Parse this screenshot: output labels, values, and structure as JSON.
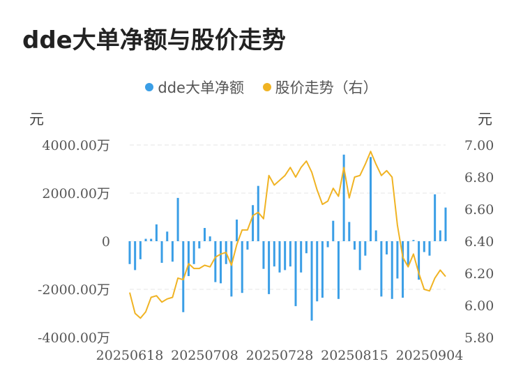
{
  "title": "dde大单净额与股价走势",
  "chart_data": {
    "type": "bar+line",
    "legend": [
      {
        "name": "dde大单净额",
        "color": "#3a9ee6"
      },
      {
        "name": "股价走势（右）",
        "color": "#f0b323"
      }
    ],
    "y_left": {
      "unit": "元",
      "ticks": [
        "4000.00万",
        "2000.00万",
        "0",
        "-2000.00万",
        "-4000.00万"
      ],
      "range": [
        -4000,
        4000
      ]
    },
    "y_right": {
      "unit": "元",
      "ticks": [
        "7.00",
        "6.80",
        "6.60",
        "6.40",
        "6.20",
        "6.00",
        "5.80"
      ],
      "range": [
        5.8,
        7.0
      ]
    },
    "x_ticks": [
      "20250618",
      "20250708",
      "20250728",
      "20250815",
      "20250904"
    ],
    "x_tick_index": [
      0,
      14,
      28,
      42,
      56
    ],
    "bars": [
      -950,
      -1200,
      -750,
      100,
      100,
      700,
      -900,
      400,
      -850,
      1800,
      -2950,
      -1450,
      -950,
      -300,
      550,
      200,
      -1700,
      -1750,
      -950,
      -2300,
      900,
      -2150,
      -350,
      1500,
      2300,
      -1150,
      -2200,
      -1050,
      -1300,
      -1200,
      -1050,
      -2700,
      -1300,
      -500,
      -3300,
      -2500,
      -2350,
      -250,
      850,
      -2400,
      3600,
      800,
      -350,
      -1200,
      -600,
      3500,
      450,
      -2300,
      -550,
      -2400,
      -1550,
      -2350,
      -1000,
      50,
      -1600,
      -450,
      -600,
      1950,
      450,
      1400
    ],
    "price": [
      6.08,
      5.95,
      5.92,
      5.96,
      6.05,
      6.06,
      6.02,
      6.04,
      6.05,
      6.17,
      6.16,
      6.26,
      6.23,
      6.23,
      6.25,
      6.24,
      6.3,
      6.32,
      6.33,
      6.25,
      6.38,
      6.47,
      6.47,
      6.56,
      6.58,
      6.54,
      6.81,
      6.75,
      6.78,
      6.81,
      6.86,
      6.8,
      6.86,
      6.9,
      6.83,
      6.72,
      6.63,
      6.65,
      6.73,
      6.68,
      6.86,
      6.67,
      6.8,
      6.81,
      6.88,
      6.96,
      6.88,
      6.81,
      6.84,
      6.8,
      6.5,
      6.3,
      6.24,
      6.32,
      6.2,
      6.1,
      6.09,
      6.17,
      6.22,
      6.18
    ]
  }
}
